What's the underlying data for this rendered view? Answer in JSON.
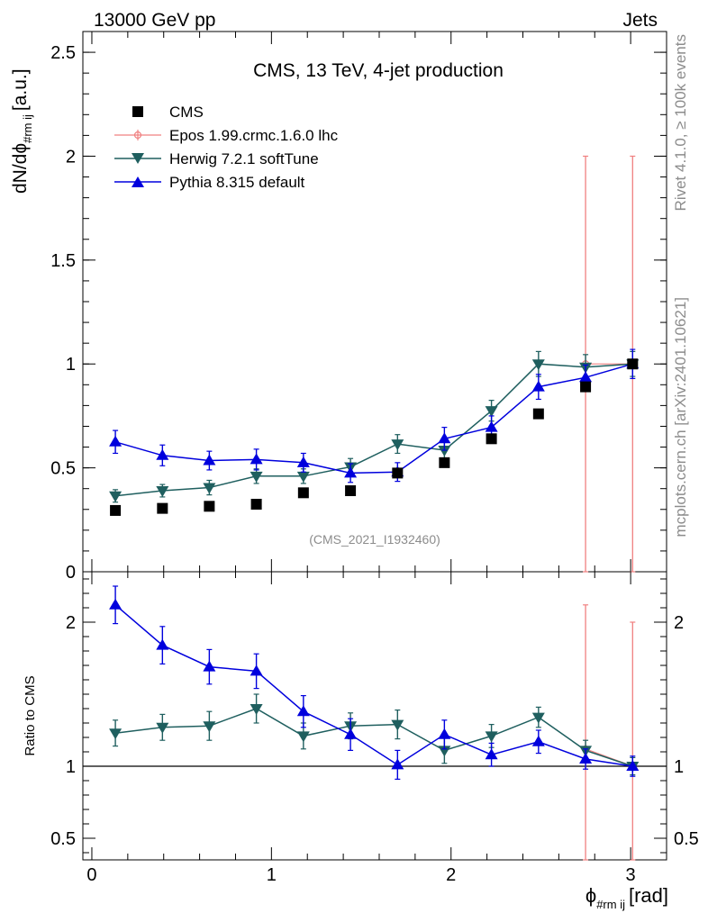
{
  "header": {
    "left": "13000 GeV pp",
    "right": "Jets"
  },
  "side_labels": {
    "rivet": "Rivet 4.1.0, ≥ 100k events",
    "mcplots": "mcplots.cern.ch [arXiv:2401.10621]"
  },
  "colors": {
    "cms": "#000000",
    "epos": "#f08080",
    "herwig": "#1f5f5f",
    "pythia": "#0000dd"
  },
  "chart_data": [
    {
      "type": "scatter",
      "title": "CMS, 13 TeV, 4-jet production",
      "watermark": "(CMS_2021_I1932460)",
      "ylabel_main": "dN/dϕ",
      "ylabel_sub": "#rm ij",
      "ylabel_unit": "[a.u.]",
      "xlim": [
        -0.05,
        3.2
      ],
      "ylim": [
        0,
        2.6
      ],
      "yticks": [
        0,
        0.5,
        1,
        1.5,
        2,
        2.5
      ],
      "ytick_labels": [
        "0",
        "0.5",
        "1",
        "1.5",
        "2",
        "2.5"
      ],
      "x": [
        0.131,
        0.393,
        0.654,
        0.916,
        1.178,
        1.44,
        1.702,
        1.963,
        2.225,
        2.487,
        2.749,
        3.011
      ],
      "series": [
        {
          "name": "CMS",
          "key": "cms",
          "marker": "square",
          "values": [
            0.295,
            0.305,
            0.315,
            0.325,
            0.38,
            0.39,
            0.475,
            0.525,
            0.64,
            0.76,
            0.89,
            1.0
          ]
        },
        {
          "name": "Epos 1.99.crmc.1.6.0 lhc",
          "key": "epos",
          "marker": "open-circle",
          "only_last": 2,
          "values": [
            null,
            null,
            null,
            null,
            null,
            null,
            null,
            null,
            null,
            null,
            1.0,
            1.0
          ],
          "errors": [
            null,
            null,
            null,
            null,
            null,
            null,
            null,
            null,
            null,
            null,
            1.0,
            1.0
          ]
        },
        {
          "name": "Herwig 7.2.1 softTune",
          "key": "herwig",
          "marker": "triangle-down",
          "values": [
            0.365,
            0.39,
            0.405,
            0.46,
            0.46,
            0.505,
            0.615,
            0.585,
            0.775,
            1.0,
            0.985,
            1.0
          ],
          "errors": [
            0.03,
            0.03,
            0.035,
            0.035,
            0.035,
            0.04,
            0.045,
            0.045,
            0.05,
            0.06,
            0.06,
            0.06
          ]
        },
        {
          "name": "Pythia 8.315 default",
          "key": "pythia",
          "marker": "triangle-up",
          "values": [
            0.625,
            0.56,
            0.535,
            0.54,
            0.525,
            0.475,
            0.48,
            0.64,
            0.695,
            0.89,
            0.935,
            1.0
          ],
          "errors": [
            0.055,
            0.05,
            0.045,
            0.05,
            0.045,
            0.045,
            0.045,
            0.055,
            0.055,
            0.06,
            0.06,
            0.07
          ]
        }
      ]
    },
    {
      "type": "scatter",
      "ylabel": "Ratio to CMS",
      "xlabel_main": "ϕ",
      "xlabel_sub": "#rm ij",
      "xlabel_unit": "[rad]",
      "xlim": [
        -0.05,
        3.2
      ],
      "ylim": [
        0.35,
        2.35
      ],
      "xticks": [
        0,
        1,
        2,
        3
      ],
      "xtick_labels": [
        "0",
        "1",
        "2",
        "3"
      ],
      "yticks": [
        0.5,
        1,
        2
      ],
      "ytick_labels": [
        "0.5",
        "1",
        "2"
      ],
      "reference_line": 1,
      "x": [
        0.131,
        0.393,
        0.654,
        0.916,
        1.178,
        1.44,
        1.702,
        1.963,
        2.225,
        2.487,
        2.749,
        3.011
      ],
      "series": [
        {
          "name": "Epos 1.99.crmc.1.6.0 lhc",
          "key": "epos",
          "values": [
            null,
            null,
            null,
            null,
            null,
            null,
            null,
            null,
            null,
            null,
            1.12,
            1.0
          ],
          "errors": [
            null,
            null,
            null,
            null,
            null,
            null,
            null,
            null,
            null,
            null,
            1.0,
            1.0
          ]
        },
        {
          "name": "Herwig 7.2.1 softTune",
          "key": "herwig",
          "values": [
            1.23,
            1.27,
            1.28,
            1.4,
            1.21,
            1.28,
            1.29,
            1.11,
            1.21,
            1.34,
            1.11,
            1.0
          ],
          "errors": [
            0.09,
            0.09,
            0.1,
            0.1,
            0.09,
            0.09,
            0.1,
            0.09,
            0.08,
            0.07,
            0.07,
            0.06
          ]
        },
        {
          "name": "Pythia 8.315 default",
          "key": "pythia",
          "values": [
            2.12,
            1.84,
            1.69,
            1.66,
            1.38,
            1.22,
            1.01,
            1.22,
            1.08,
            1.17,
            1.05,
            1.0
          ],
          "errors": [
            0.13,
            0.13,
            0.12,
            0.12,
            0.11,
            0.11,
            0.1,
            0.1,
            0.08,
            0.08,
            0.07,
            0.07
          ]
        }
      ]
    }
  ]
}
